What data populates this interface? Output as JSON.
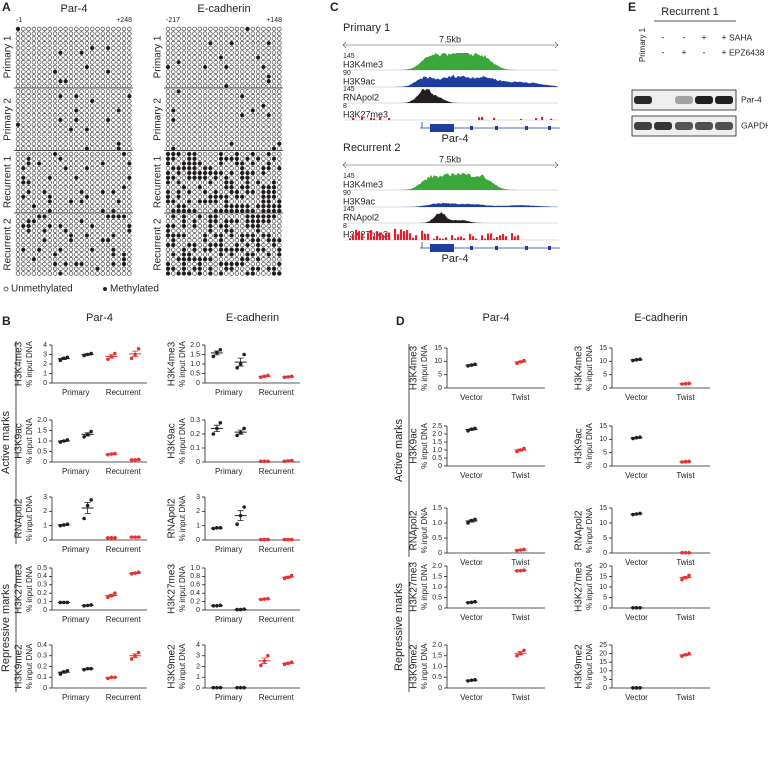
{
  "panel_a": {
    "label": "A",
    "genes": [
      {
        "name": "Par-4",
        "start": "-1",
        "end": "+248"
      },
      {
        "name": "E-cadherin",
        "start": "-217",
        "end": "+148"
      }
    ],
    "samples": [
      "Primary 1",
      "Primary 2",
      "Recurrent 1",
      "Recurrent 2"
    ],
    "legend": [
      "Unmethylated",
      "Methylated"
    ]
  },
  "panel_b": {
    "label": "B",
    "columns": [
      "Par-4",
      "E-cadherin"
    ],
    "sections": [
      "Active marks",
      "Repressive marks"
    ],
    "y_label": "% input DNA",
    "categories": [
      "Primary",
      "Recurrent"
    ],
    "group_colors": [
      "#231f20",
      "#231f20",
      "#e8312f",
      "#e8312f"
    ],
    "rows": [
      {
        "mark": "H3K4me3",
        "plots": [
          {
            "ylim": [
              0,
              4
            ],
            "yticks": [
              0,
              1,
              2,
              3,
              4
            ],
            "groups": [
              [
                2.4,
                2.6,
                2.7
              ],
              [
                2.9,
                3.0,
                3.1
              ],
              [
                2.5,
                2.8,
                3.1
              ],
              [
                2.6,
                3.0,
                3.6
              ]
            ]
          },
          {
            "ylim": [
              0,
              2
            ],
            "yticks": [
              0,
              0.5,
              {
                "value": 1,
                "label": "1.0"
              },
              1.5,
              {
                "value": 2,
                "label": "2.0"
              }
            ],
            "groups": [
              [
                1.4,
                1.6,
                1.75
              ],
              [
                0.8,
                1.0,
                1.5
              ],
              [
                0.3,
                0.35,
                0.4
              ],
              [
                0.3,
                0.32,
                0.35
              ]
            ]
          }
        ]
      },
      {
        "mark": "H3K9ac",
        "plots": [
          {
            "ylim": [
              0,
              2
            ],
            "yticks": [
              0,
              0.5,
              {
                "value": 1,
                "label": "1.0"
              },
              1.5,
              {
                "value": 2,
                "label": "2.0"
              }
            ],
            "groups": [
              [
                0.95,
                1.0,
                1.05
              ],
              [
                1.2,
                1.3,
                1.45
              ],
              [
                0.35,
                0.38,
                0.4
              ],
              [
                0.1,
                0.1,
                0.12
              ]
            ]
          },
          {
            "ylim": [
              0,
              0.3
            ],
            "yticks": [
              0,
              0.1,
              0.2,
              0.3
            ],
            "groups": [
              [
                0.2,
                0.24,
                0.28
              ],
              [
                0.19,
                0.21,
                0.24
              ],
              [
                0.005,
                0.005,
                0.005
              ],
              [
                0.005,
                0.008,
                0.01
              ]
            ]
          }
        ]
      },
      {
        "mark": "RNApol2",
        "plots": [
          {
            "ylim": [
              0,
              3
            ],
            "yticks": [
              0,
              1,
              2,
              3
            ],
            "groups": [
              [
                1.0,
                1.05,
                1.1
              ],
              [
                1.5,
                2.4,
                2.8
              ],
              [
                0.15,
                0.15,
                0.15
              ],
              [
                0.2,
                0.2,
                0.2
              ]
            ]
          },
          {
            "ylim": [
              0,
              3
            ],
            "yticks": [
              0,
              1,
              2,
              3
            ],
            "groups": [
              [
                0.8,
                0.85,
                0.85
              ],
              [
                1.1,
                1.7,
                2.3
              ],
              [
                0.03,
                0.03,
                0.03
              ],
              [
                0.03,
                0.03,
                0.03
              ]
            ]
          }
        ]
      },
      {
        "mark": "H3K27me3",
        "plots": [
          {
            "ylim": [
              0,
              0.5
            ],
            "yticks": [
              0,
              0.1,
              0.2,
              0.3,
              0.4,
              0.5
            ],
            "groups": [
              [
                0.09,
                0.09,
                0.09
              ],
              [
                0.05,
                0.055,
                0.06
              ],
              [
                0.15,
                0.17,
                0.2
              ],
              [
                0.43,
                0.44,
                0.45
              ]
            ]
          },
          {
            "ylim": [
              0,
              1
            ],
            "yticks": [
              0,
              0.2,
              0.4,
              0.6,
              0.8,
              {
                "value": 1,
                "label": "1.0"
              }
            ],
            "groups": [
              [
                0.1,
                0.1,
                0.11
              ],
              [
                0.01,
                0.01,
                0.02
              ],
              [
                0.25,
                0.26,
                0.27
              ],
              [
                0.75,
                0.78,
                0.82
              ]
            ]
          }
        ]
      },
      {
        "mark": "H3K9me2",
        "plots": [
          {
            "ylim": [
              0,
              0.4
            ],
            "yticks": [
              0,
              0.1,
              0.2,
              0.3,
              0.4
            ],
            "groups": [
              [
                0.13,
                0.15,
                0.16
              ],
              [
                0.17,
                0.18,
                0.18
              ],
              [
                0.09,
                0.1,
                0.1
              ],
              [
                0.27,
                0.3,
                0.33
              ]
            ]
          },
          {
            "ylim": [
              0,
              4
            ],
            "yticks": [
              0,
              1,
              2,
              3,
              4
            ],
            "groups": [
              [
                0.03,
                0.03,
                0.03
              ],
              [
                0.03,
                0.03,
                0.03
              ],
              [
                2.1,
                2.5,
                3.0
              ],
              [
                2.2,
                2.3,
                2.4
              ]
            ]
          }
        ]
      }
    ]
  },
  "panel_c": {
    "label": "C",
    "blocks": [
      {
        "sample": "Primary 1",
        "scale": "7.5kb",
        "tracks": [
          {
            "name": "H3K4me3",
            "max": 145
          },
          {
            "name": "H3K9ac",
            "max": 90
          },
          {
            "name": "RNApol2",
            "max": 145
          },
          {
            "name": "H3K27me3",
            "max": 8
          }
        ],
        "gene": "Par-4"
      },
      {
        "sample": "Recurrent 2",
        "scale": "7.5kb",
        "tracks": [
          {
            "name": "H3K4me3",
            "max": 145
          },
          {
            "name": "H3K9ac",
            "max": 90
          },
          {
            "name": "RNApol2",
            "max": 145
          },
          {
            "name": "H3K27me3",
            "max": 8
          }
        ],
        "gene": "Par-4"
      }
    ]
  },
  "panel_d": {
    "label": "D",
    "columns": [
      "Par-4",
      "E-cadherin"
    ],
    "sections": [
      "Active marks",
      "Repressive marks"
    ],
    "y_label": "% input DNA",
    "categories": [
      "Vector",
      "Twist"
    ],
    "group_colors": [
      "#231f20",
      "#e8312f"
    ],
    "rows": [
      {
        "mark": "H3K4me3",
        "plots": [
          {
            "ylim": [
              0,
              15
            ],
            "yticks": [
              0,
              5,
              10,
              15
            ],
            "groups": [
              [
                8.3,
                8.6,
                8.9
              ],
              [
                9.3,
                9.8,
                10.3
              ]
            ]
          },
          {
            "ylim": [
              0,
              15
            ],
            "yticks": [
              0,
              5,
              10,
              15
            ],
            "groups": [
              [
                10.3,
                10.6,
                10.8
              ],
              [
                1.5,
                1.6,
                1.7
              ]
            ]
          }
        ]
      },
      {
        "mark": "H3K9ac",
        "plots": [
          {
            "ylim": [
              0,
              2.5
            ],
            "yticks": [
              0,
              0.5,
              {
                "value": 1,
                "label": "1.0"
              },
              1.5,
              {
                "value": 2,
                "label": "2.0"
              },
              2.5
            ],
            "groups": [
              [
                2.2,
                2.3,
                2.35
              ],
              [
                0.9,
                1.0,
                1.1
              ]
            ]
          },
          {
            "ylim": [
              0,
              15
            ],
            "yticks": [
              0,
              5,
              10,
              15
            ],
            "groups": [
              [
                10.3,
                10.6,
                10.8
              ],
              [
                1.5,
                1.6,
                1.7
              ]
            ]
          }
        ]
      },
      {
        "mark": "RNApol2",
        "plots": [
          {
            "ylim": [
              0,
              1.5
            ],
            "yticks": [
              0,
              0.5,
              {
                "value": 1,
                "label": "1.0"
              },
              1.5
            ],
            "groups": [
              [
                1.0,
                1.08,
                1.12
              ],
              [
                0.08,
                0.1,
                0.12
              ]
            ]
          },
          {
            "ylim": [
              0,
              15
            ],
            "yticks": [
              0,
              5,
              10,
              15
            ],
            "groups": [
              [
                12.8,
                13,
                13.2
              ],
              [
                0.1,
                0.1,
                0.1
              ]
            ]
          }
        ]
      },
      {
        "mark": "H3K27me3",
        "plots": [
          {
            "ylim": [
              0,
              2
            ],
            "yticks": [
              0,
              0.5,
              {
                "value": 1,
                "label": "1.0"
              },
              1.5,
              {
                "value": 2,
                "label": "2.0"
              }
            ],
            "groups": [
              [
                0.25,
                0.27,
                0.3
              ],
              [
                1.77,
                1.78,
                1.8
              ]
            ]
          },
          {
            "ylim": [
              0,
              20
            ],
            "yticks": [
              0,
              5,
              10,
              15,
              20
            ],
            "groups": [
              [
                0.1,
                0.1,
                0.1
              ],
              [
                13.5,
                14.5,
                15.5
              ]
            ]
          }
        ]
      },
      {
        "mark": "H3K9me2",
        "plots": [
          {
            "ylim": [
              0,
              2
            ],
            "yticks": [
              0,
              0.5,
              {
                "value": 1,
                "label": "1.0"
              },
              1.5,
              {
                "value": 2,
                "label": "2.0"
              }
            ],
            "groups": [
              [
                0.33,
                0.36,
                0.38
              ],
              [
                1.5,
                1.6,
                1.75
              ]
            ]
          },
          {
            "ylim": [
              0,
              25
            ],
            "yticks": [
              0,
              5,
              10,
              15,
              20,
              25
            ],
            "groups": [
              [
                0.1,
                0.1,
                0.1
              ],
              [
                18.5,
                19.3,
                20
              ]
            ]
          }
        ]
      }
    ]
  },
  "panel_e": {
    "label": "E",
    "control": "Primary 1",
    "group": "Recurrent 1",
    "treatments": [
      {
        "name": "SAHA",
        "signs": [
          "-",
          "-",
          "+",
          "+"
        ]
      },
      {
        "name": "EPZ6438",
        "signs": [
          "-",
          "+",
          "-",
          "+"
        ]
      }
    ],
    "blots": [
      "Par-4",
      "GAPDH"
    ]
  }
}
